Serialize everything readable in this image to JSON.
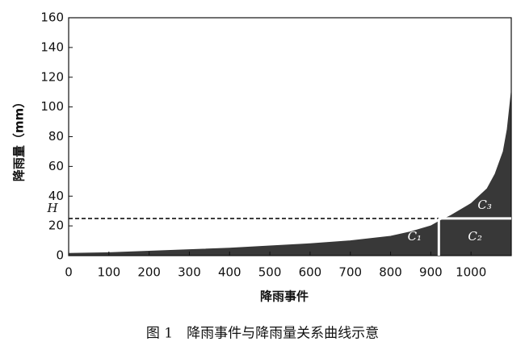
{
  "chart_data": {
    "type": "area",
    "x_label": "降雨事件",
    "y_label": "降雨量（mm）",
    "caption": "图 1　降雨事件与降雨量关系曲线示意",
    "x": [
      0,
      100,
      200,
      300,
      400,
      500,
      600,
      700,
      800,
      850,
      900,
      920,
      950,
      1000,
      1040,
      1060,
      1080,
      1090,
      1100
    ],
    "values": [
      1.5,
      2,
      3,
      4,
      5,
      6.5,
      8,
      10,
      13,
      16,
      20,
      23,
      27,
      35,
      45,
      55,
      70,
      85,
      110
    ],
    "color": "#383838",
    "xlim": [
      0,
      1100
    ],
    "ylim": [
      0,
      160
    ],
    "xticks": [
      0,
      100,
      200,
      300,
      400,
      500,
      600,
      700,
      800,
      900,
      1000
    ],
    "yticks": [
      0,
      20,
      40,
      60,
      80,
      100,
      120,
      140,
      160
    ],
    "threshold": {
      "label": "H",
      "value": 25
    },
    "split_x": 920,
    "region_labels": [
      "C₁",
      "C₂",
      "C₃"
    ]
  }
}
